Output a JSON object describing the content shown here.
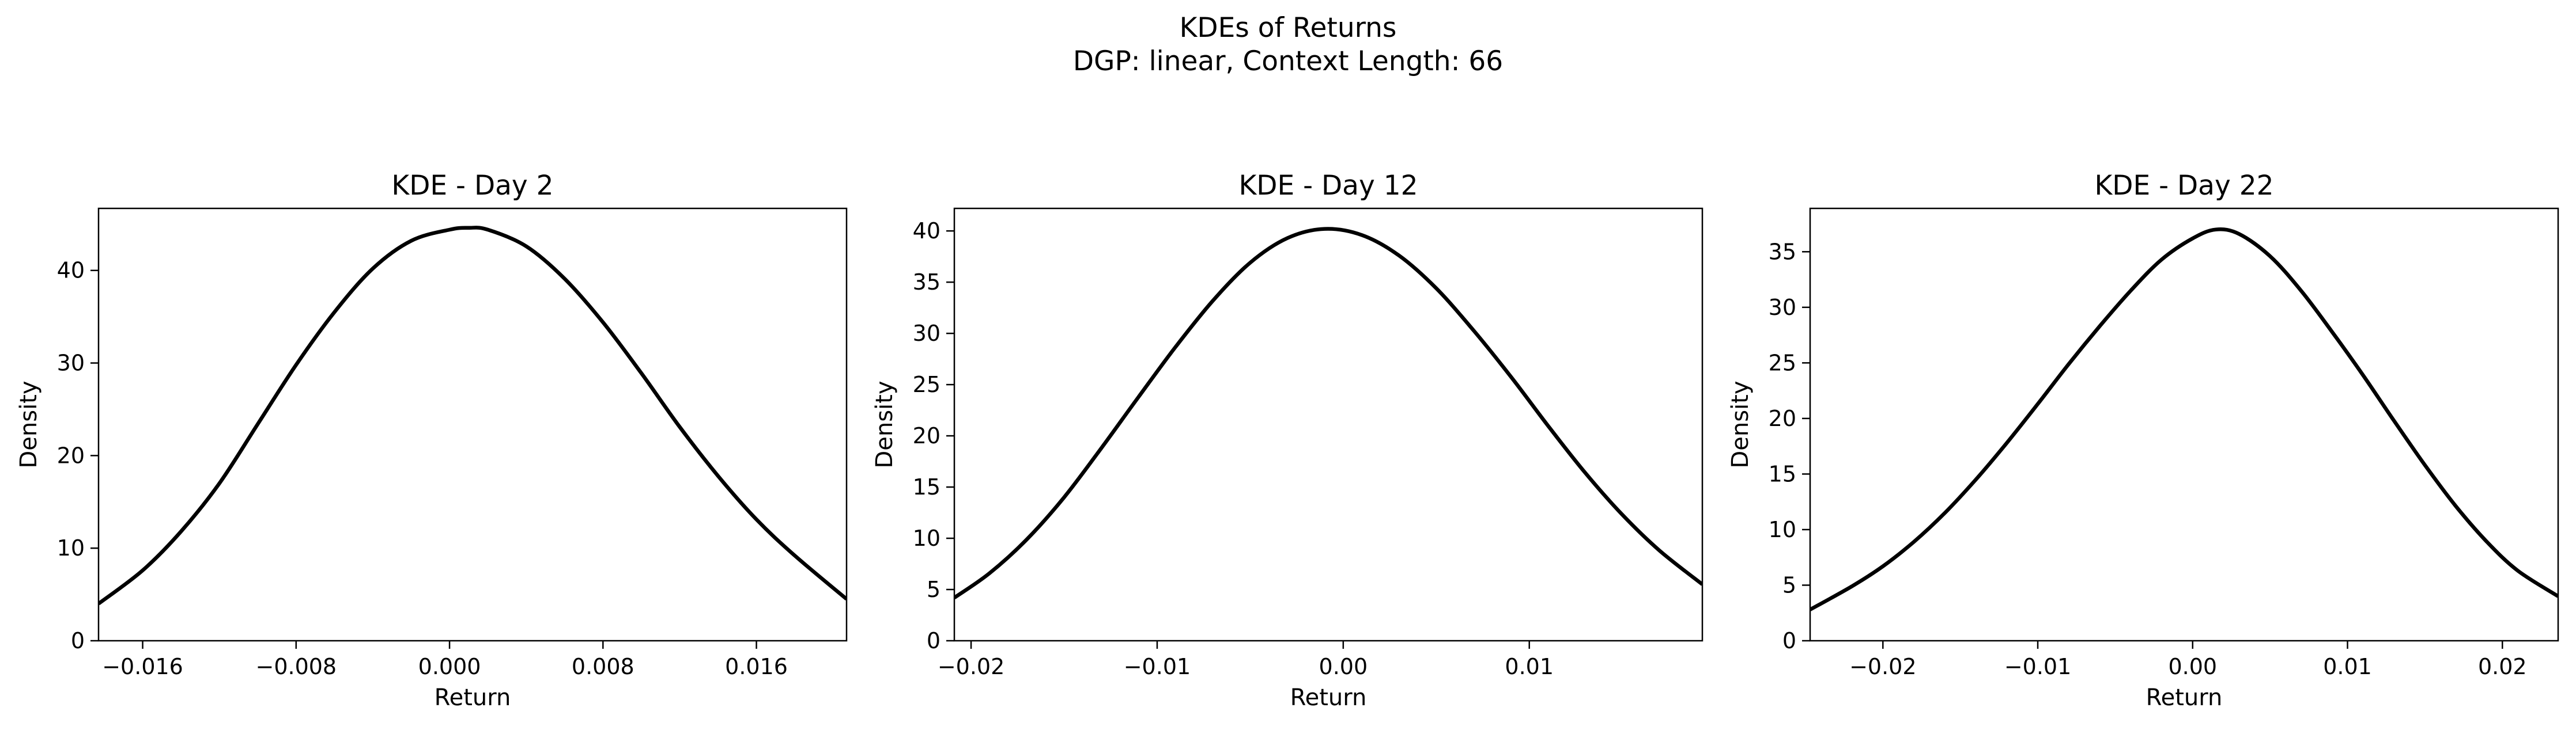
{
  "figure": {
    "title_line1": "KDEs of Returns",
    "title_line2": "DGP: linear, Context Length: 66"
  },
  "chart_data": [
    {
      "type": "line",
      "title": "KDE - Day 2",
      "xlabel": "Return",
      "ylabel": "Density",
      "xlim": [
        -0.0183,
        0.0207
      ],
      "ylim": [
        0,
        46.7
      ],
      "xticks": [
        -0.016,
        -0.008,
        0.0,
        0.008,
        0.016
      ],
      "xtick_labels": [
        "−0.016",
        "−0.008",
        "0.000",
        "0.008",
        "0.016"
      ],
      "yticks": [
        0,
        10,
        20,
        30,
        40
      ],
      "ytick_labels": [
        "0",
        "10",
        "20",
        "30",
        "40"
      ],
      "grid": false,
      "line_color": "#000000",
      "series": [
        {
          "x": [
            -0.0183,
            -0.016,
            -0.014,
            -0.012,
            -0.01,
            -0.008,
            -0.006,
            -0.004,
            -0.002,
            0.0,
            0.001,
            0.002,
            0.004,
            0.006,
            0.008,
            0.01,
            0.012,
            0.014,
            0.016,
            0.018,
            0.0207
          ],
          "values": [
            4.0,
            7.6,
            11.8,
            17.0,
            23.4,
            29.8,
            35.5,
            40.2,
            43.2,
            44.4,
            44.6,
            44.4,
            42.6,
            39.1,
            34.4,
            28.9,
            23.1,
            17.8,
            13.1,
            9.2,
            4.5
          ]
        }
      ]
    },
    {
      "type": "line",
      "title": "KDE - Day 12",
      "xlabel": "Return",
      "ylabel": "Density",
      "xlim": [
        -0.0209,
        0.0193
      ],
      "ylim": [
        0,
        42.2
      ],
      "xticks": [
        -0.02,
        -0.01,
        0.0,
        0.01
      ],
      "xtick_labels": [
        "−0.02",
        "−0.01",
        "0.00",
        "0.01"
      ],
      "yticks": [
        0,
        5,
        10,
        15,
        20,
        25,
        30,
        35,
        40
      ],
      "ytick_labels": [
        "0",
        "5",
        "10",
        "15",
        "20",
        "25",
        "30",
        "35",
        "40"
      ],
      "grid": false,
      "line_color": "#000000",
      "series": [
        {
          "x": [
            -0.0209,
            -0.019,
            -0.017,
            -0.015,
            -0.013,
            -0.011,
            -0.009,
            -0.007,
            -0.005,
            -0.003,
            -0.001,
            0.001,
            0.003,
            0.005,
            0.007,
            0.009,
            0.011,
            0.013,
            0.015,
            0.017,
            0.0193
          ],
          "values": [
            4.2,
            6.6,
            9.9,
            14.0,
            18.8,
            23.8,
            28.7,
            33.2,
            36.9,
            39.3,
            40.2,
            39.6,
            37.6,
            34.4,
            30.3,
            25.8,
            21.0,
            16.4,
            12.3,
            8.8,
            5.5
          ]
        }
      ]
    },
    {
      "type": "line",
      "title": "KDE - Day 22",
      "xlabel": "Return",
      "ylabel": "Density",
      "xlim": [
        -0.0247,
        0.0236
      ],
      "ylim": [
        0,
        38.9
      ],
      "xticks": [
        -0.02,
        -0.01,
        0.0,
        0.01,
        0.02
      ],
      "xtick_labels": [
        "−0.02",
        "−0.01",
        "0.00",
        "0.01",
        "0.02"
      ],
      "yticks": [
        0,
        5,
        10,
        15,
        20,
        25,
        30,
        35
      ],
      "ytick_labels": [
        "0",
        "5",
        "10",
        "15",
        "20",
        "25",
        "30",
        "35"
      ],
      "grid": false,
      "line_color": "#000000",
      "series": [
        {
          "x": [
            -0.0247,
            -0.022,
            -0.02,
            -0.018,
            -0.016,
            -0.014,
            -0.012,
            -0.01,
            -0.008,
            -0.006,
            -0.004,
            -0.002,
            0.0,
            0.0015,
            0.003,
            0.005,
            0.007,
            0.009,
            0.011,
            0.013,
            0.015,
            0.017,
            0.019,
            0.021,
            0.0236
          ],
          "values": [
            2.8,
            4.9,
            6.7,
            8.9,
            11.5,
            14.5,
            17.8,
            21.3,
            24.9,
            28.3,
            31.5,
            34.3,
            36.2,
            37.0,
            36.6,
            34.6,
            31.5,
            27.8,
            23.9,
            19.8,
            15.8,
            12.1,
            8.9,
            6.3,
            4.0
          ]
        }
      ]
    }
  ]
}
